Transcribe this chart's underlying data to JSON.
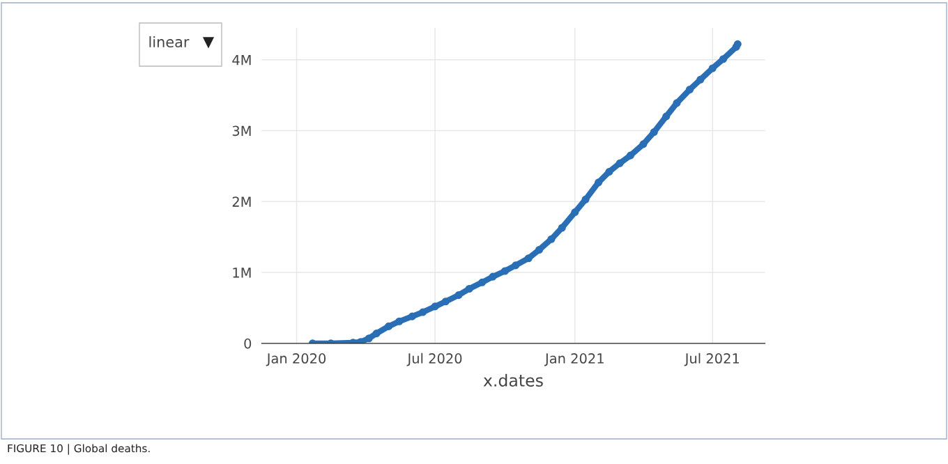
{
  "chart_data": {
    "type": "line",
    "xlabel": "x.dates",
    "x": [
      "2020-01-22",
      "2020-02-15",
      "2020-03-15",
      "2020-03-25",
      "2020-04-05",
      "2020-04-15",
      "2020-05-01",
      "2020-05-15",
      "2020-06-01",
      "2020-06-15",
      "2020-07-01",
      "2020-07-15",
      "2020-08-01",
      "2020-08-15",
      "2020-09-01",
      "2020-09-15",
      "2020-10-01",
      "2020-10-15",
      "2020-11-01",
      "2020-11-15",
      "2020-12-01",
      "2020-12-15",
      "2021-01-01",
      "2021-01-15",
      "2021-02-01",
      "2021-02-15",
      "2021-03-01",
      "2021-03-15",
      "2021-04-01",
      "2021-04-15",
      "2021-05-01",
      "2021-05-15",
      "2021-06-01",
      "2021-06-15",
      "2021-07-01",
      "2021-07-15",
      "2021-08-01",
      "2021-08-03"
    ],
    "series": [
      {
        "color": "#2a6fb5",
        "values": [
          0,
          0,
          10000,
          20000,
          70000,
          140000,
          240000,
          310000,
          380000,
          440000,
          520000,
          590000,
          680000,
          770000,
          860000,
          940000,
          1020000,
          1100000,
          1200000,
          1320000,
          1470000,
          1630000,
          1850000,
          2030000,
          2270000,
          2420000,
          2540000,
          2650000,
          2810000,
          2980000,
          3200000,
          3390000,
          3580000,
          3720000,
          3880000,
          4010000,
          4180000,
          4220000
        ]
      }
    ],
    "xlim": [
      "2019-11-16",
      "2021-09-08"
    ],
    "xticks": [
      {
        "value": "2020-01-01",
        "label": "Jan 2020"
      },
      {
        "value": "2020-07-01",
        "label": "Jul 2020"
      },
      {
        "value": "2021-01-01",
        "label": "Jan 2021"
      },
      {
        "value": "2021-07-01",
        "label": "Jul 2021"
      }
    ],
    "ylim": [
      0,
      4450000
    ],
    "yticks": [
      {
        "value": 0,
        "label": "0"
      },
      {
        "value": 1000000,
        "label": "1M"
      },
      {
        "value": 2000000,
        "label": "2M"
      },
      {
        "value": 3000000,
        "label": "3M"
      },
      {
        "value": 4000000,
        "label": "4M"
      }
    ],
    "grid": true,
    "marker": "circle",
    "line_style": "solid",
    "annotations": [
      "linear",
      "FIGURE 10 | Global deaths."
    ]
  }
}
